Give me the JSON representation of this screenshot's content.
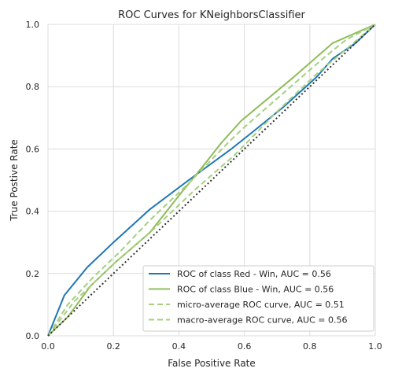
{
  "chart_data": {
    "type": "line",
    "title": "ROC Curves for KNeighborsClassifier",
    "xlabel": "False Positive Rate",
    "ylabel": "True Postive Rate",
    "xlim": [
      0.0,
      1.0
    ],
    "ylim": [
      0.0,
      1.0
    ],
    "xticks": [
      "0.0",
      "0.2",
      "0.4",
      "0.6",
      "0.8",
      "1.0"
    ],
    "yticks": [
      "0.0",
      "0.2",
      "0.4",
      "0.6",
      "0.8",
      "1.0"
    ],
    "grid": true,
    "legend_position": "lower-right",
    "series": [
      {
        "name": "ROC of class Red - Win, AUC = 0.56",
        "color": "#1f77b4",
        "dash": "solid",
        "points": [
          [
            0.0,
            0.0
          ],
          [
            0.05,
            0.13
          ],
          [
            0.12,
            0.22
          ],
          [
            0.2,
            0.3
          ],
          [
            0.31,
            0.405
          ],
          [
            0.43,
            0.5
          ],
          [
            0.56,
            0.6
          ],
          [
            0.62,
            0.65
          ],
          [
            0.72,
            0.735
          ],
          [
            0.82,
            0.83
          ],
          [
            0.87,
            0.89
          ],
          [
            0.94,
            0.94
          ],
          [
            1.0,
            1.0
          ]
        ]
      },
      {
        "name": "ROC of class Blue - Win, AUC = 0.56",
        "color": "#8fbc5a",
        "dash": "solid",
        "points": [
          [
            0.0,
            0.0
          ],
          [
            0.06,
            0.06
          ],
          [
            0.13,
            0.16
          ],
          [
            0.21,
            0.24
          ],
          [
            0.31,
            0.33
          ],
          [
            0.4,
            0.45
          ],
          [
            0.47,
            0.54
          ],
          [
            0.53,
            0.62
          ],
          [
            0.59,
            0.69
          ],
          [
            0.75,
            0.83
          ],
          [
            0.87,
            0.94
          ],
          [
            1.0,
            1.0
          ]
        ]
      },
      {
        "name": "micro-average ROC curve, AUC = 0.51",
        "color": "#a6cf7f",
        "dash": "dashed",
        "points": [
          [
            0.0,
            0.0
          ],
          [
            0.08,
            0.11
          ],
          [
            0.2,
            0.23
          ],
          [
            0.32,
            0.34
          ],
          [
            0.45,
            0.47
          ],
          [
            0.57,
            0.58
          ],
          [
            0.7,
            0.72
          ],
          [
            0.82,
            0.84
          ],
          [
            0.9,
            0.91
          ],
          [
            1.0,
            1.0
          ]
        ]
      },
      {
        "name": "macro-average ROC curve, AUC = 0.56",
        "color": "#a6cf7f",
        "dash": "dashed",
        "points": [
          [
            0.0,
            0.0
          ],
          [
            0.06,
            0.1
          ],
          [
            0.14,
            0.19
          ],
          [
            0.22,
            0.27
          ],
          [
            0.31,
            0.37
          ],
          [
            0.43,
            0.49
          ],
          [
            0.55,
            0.62
          ],
          [
            0.6,
            0.67
          ],
          [
            0.72,
            0.78
          ],
          [
            0.84,
            0.89
          ],
          [
            0.91,
            0.95
          ],
          [
            1.0,
            1.0
          ]
        ]
      },
      {
        "name": "",
        "color": "#333333",
        "dash": "dotted",
        "points": [
          [
            0.0,
            0.0
          ],
          [
            1.0,
            1.0
          ]
        ]
      }
    ]
  }
}
